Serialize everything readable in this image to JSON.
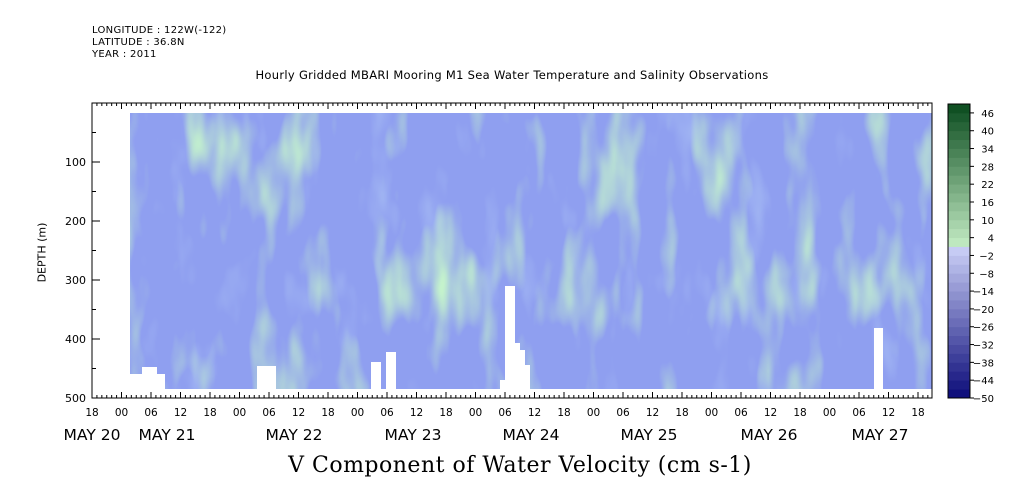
{
  "header": {
    "longitude": "LONGITUDE : 122W(-122)",
    "latitude": "LATITUDE : 36.8N",
    "year": "YEAR : 2011"
  },
  "chart_data": {
    "type": "heatmap",
    "title": "Hourly Gridded MBARI Mooring M1 Sea Water Temperature and Salinity Observations",
    "xlabel": "V Component of Water Velocity (cm s-1)",
    "ylabel": "DEPTH (m)",
    "ylim": [
      500,
      0
    ],
    "y_ticks": [
      100,
      200,
      300,
      400,
      500
    ],
    "x_hour_ticks": [
      "18",
      "00",
      "06",
      "12",
      "18",
      "00",
      "06",
      "12",
      "18",
      "00",
      "06",
      "12",
      "18",
      "00",
      "06",
      "12",
      "18",
      "00",
      "06",
      "12",
      "18",
      "00",
      "06",
      "12",
      "18",
      "00",
      "06",
      "12",
      "18"
    ],
    "x_day_labels": [
      "MAY 20",
      "MAY 21",
      "MAY 22",
      "MAY 23",
      "MAY 24",
      "MAY 25",
      "MAY 26",
      "MAY 27"
    ],
    "colorbar": {
      "labels": [
        "46",
        "40",
        "34",
        "28",
        "22",
        "16",
        "10",
        "4",
        "-2",
        "-8",
        "-14",
        "-20",
        "-26",
        "-32",
        "-38",
        "-44",
        "-50"
      ],
      "min": -50,
      "max": 49,
      "step": 3
    },
    "colors": {
      "background_blue": "#8f9ff0",
      "green": "#8fe89a",
      "dark_green": "#1a9a3a"
    }
  }
}
